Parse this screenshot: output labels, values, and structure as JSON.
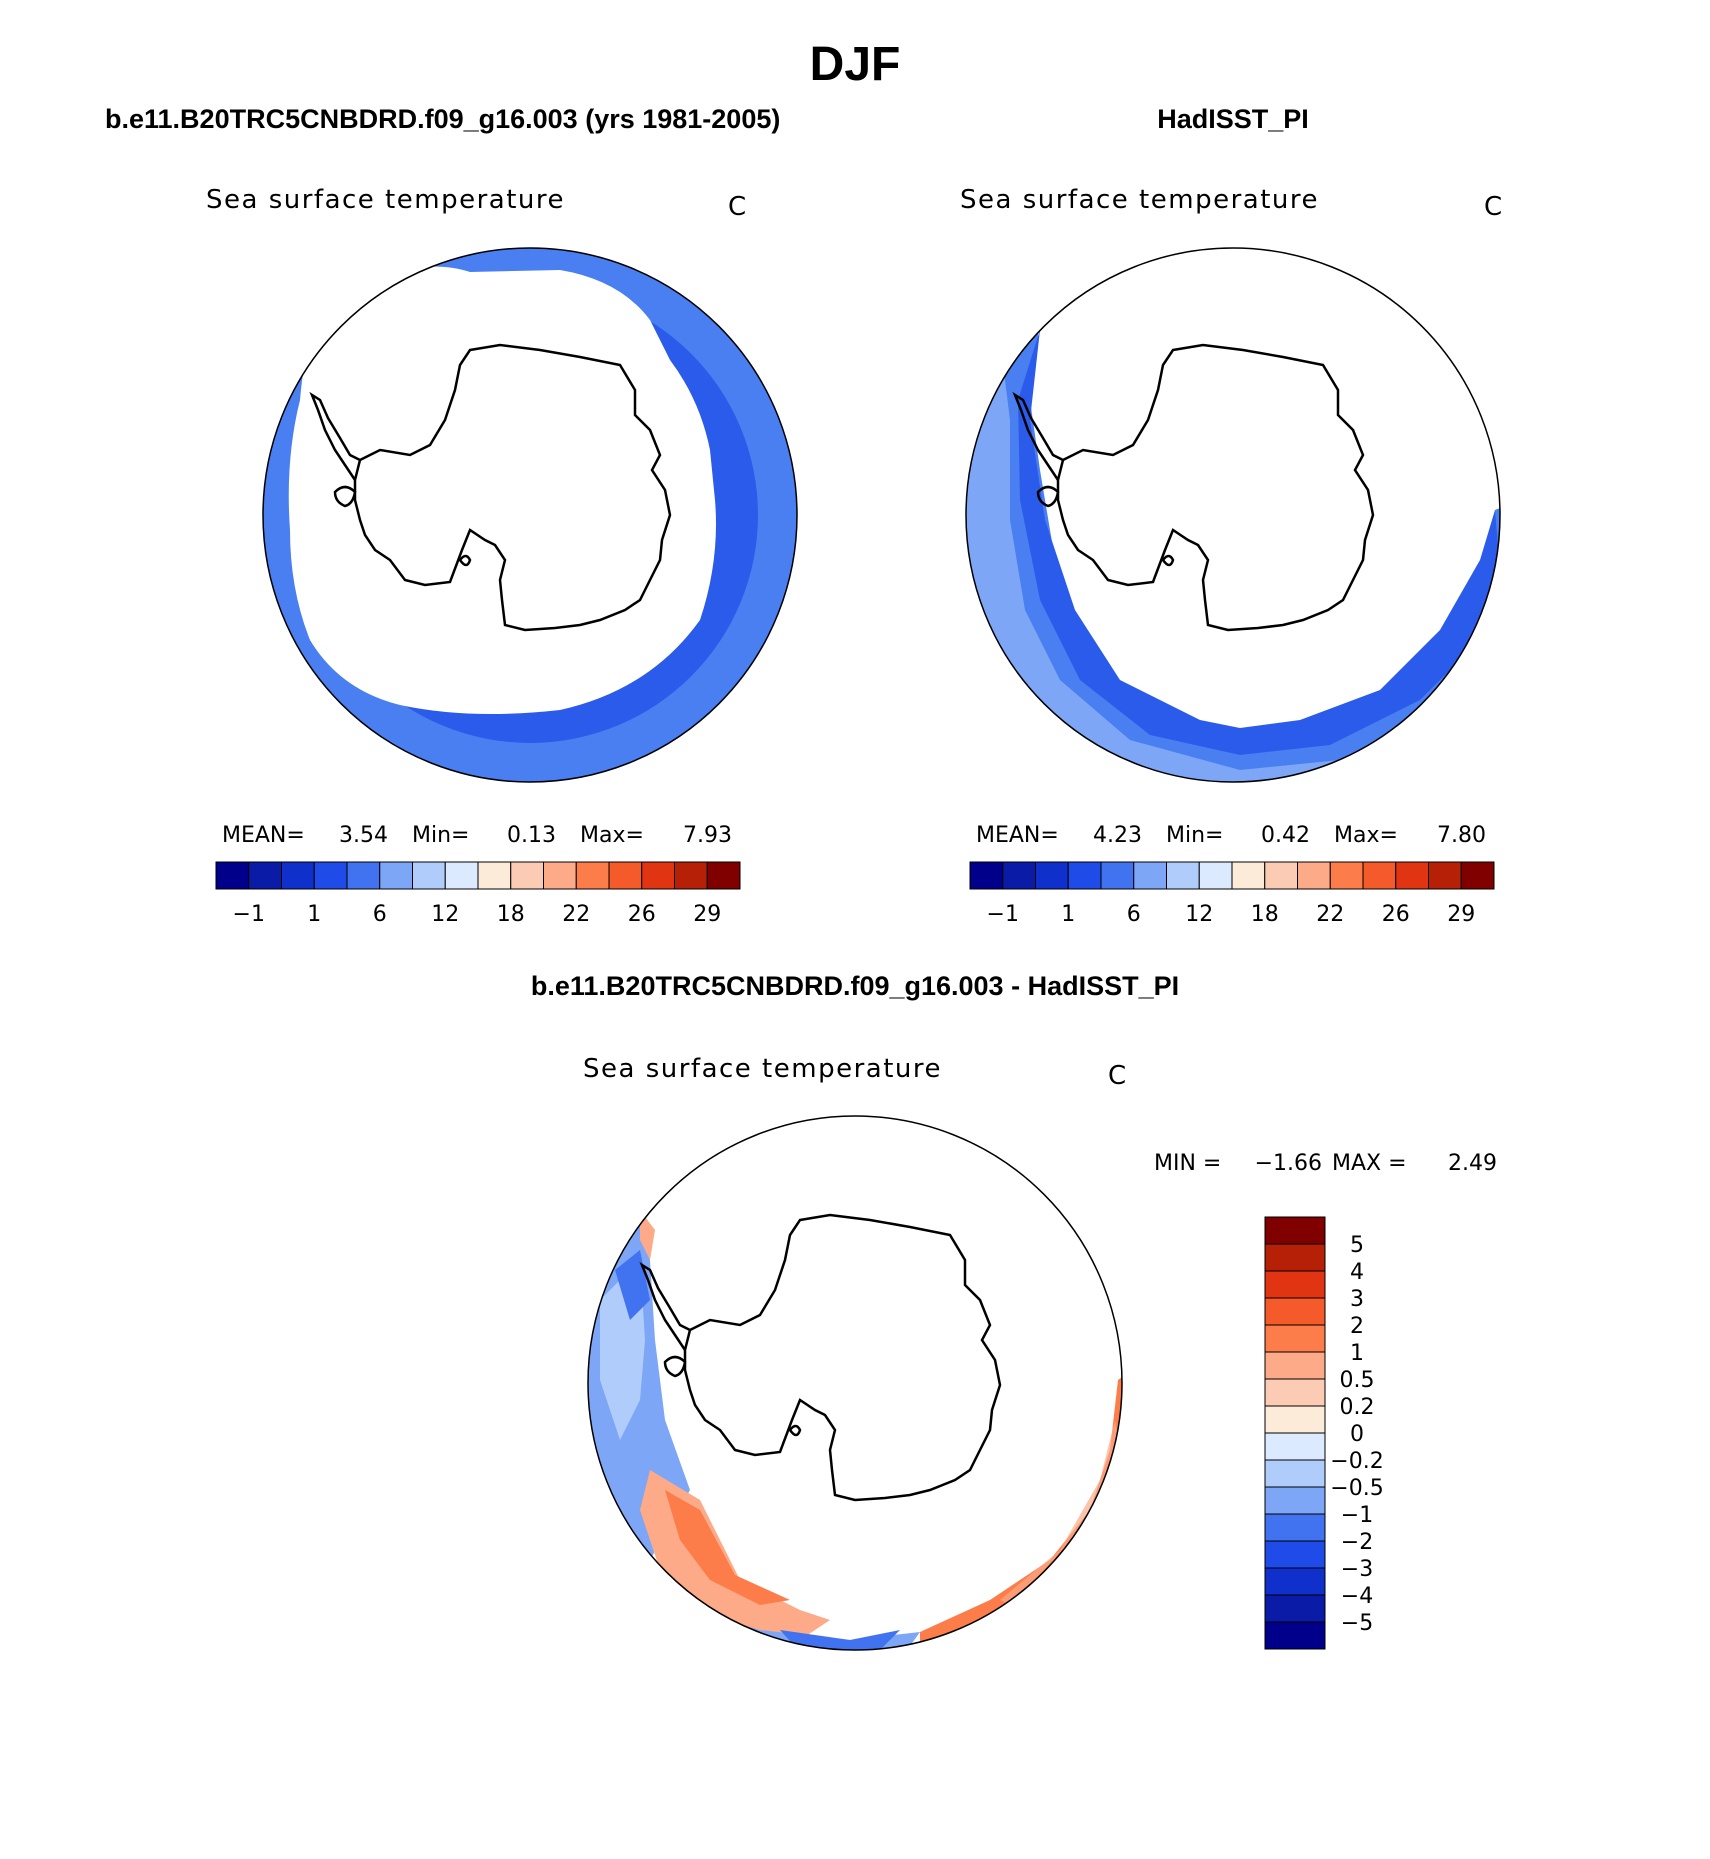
{
  "season_title": "DJF",
  "panels": [
    {
      "id": "model",
      "header": "b.e11.B20TRC5CNBDRD.f09_g16.003 (yrs 1981-2005)",
      "variable": "Sea surface temperature",
      "units": "C",
      "stats": {
        "mean_label": "MEAN=",
        "mean": "3.54",
        "min_label": "Min=",
        "min": "0.13",
        "max_label": "Max=",
        "max": "7.93"
      }
    },
    {
      "id": "obs",
      "header": "HadISST_PI",
      "variable": "Sea surface temperature",
      "units": "C",
      "stats": {
        "mean_label": "MEAN=",
        "mean": "4.23",
        "min_label": "Min=",
        "min": "0.42",
        "max_label": "Max=",
        "max": "7.80"
      }
    },
    {
      "id": "diff",
      "header": "b.e11.B20TRC5CNBDRD.f09_g16.003 - HadISST_PI",
      "variable": "Sea surface temperature",
      "units": "C",
      "stats": {
        "min_label": "MIN =",
        "min": "−1.66",
        "max_label": "MAX =",
        "max": "2.49"
      }
    }
  ],
  "colorbar_horizontal": {
    "colors": [
      "#00008b",
      "#0a1ba8",
      "#1030cc",
      "#1f4be8",
      "#4173f0",
      "#7ea6f7",
      "#b0ccfb",
      "#dbeafe",
      "#fdebd9",
      "#fccbb3",
      "#fcaa87",
      "#fc7c4a",
      "#f55a2a",
      "#e03412",
      "#b52006",
      "#800000"
    ],
    "tick_labels": [
      "−1",
      "1",
      "6",
      "12",
      "18",
      "22",
      "26",
      "29"
    ]
  },
  "colorbar_vertical": {
    "colors": [
      "#800000",
      "#b52006",
      "#e03412",
      "#f55a2a",
      "#fc7c4a",
      "#fcaa87",
      "#fccbb3",
      "#fdebd9",
      "#dbeafe",
      "#b0ccfb",
      "#7ea6f7",
      "#4173f0",
      "#1f4be8",
      "#1030cc",
      "#0a1ba8",
      "#00008b"
    ],
    "tick_labels": [
      "5",
      "4",
      "3",
      "2",
      "1",
      "0.5",
      "0.2",
      "0",
      "−0.2",
      "−0.5",
      "−1",
      "−2",
      "−3",
      "−4",
      "−5"
    ]
  }
}
